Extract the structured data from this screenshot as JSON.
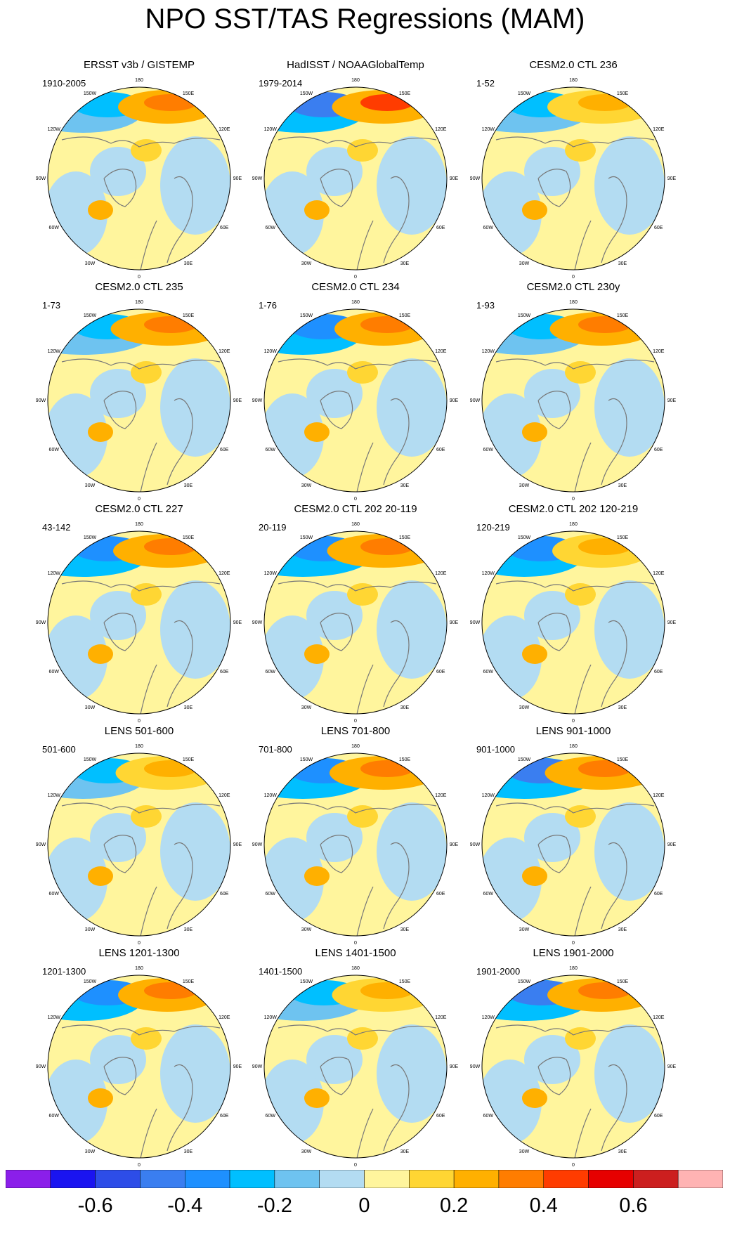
{
  "title": "NPO SST/TAS Regressions (MAM)",
  "lon_labels": [
    "180",
    "150E",
    "120E",
    "90E",
    "60E",
    "30E",
    "0",
    "30W",
    "60W",
    "90W",
    "120W",
    "150W"
  ],
  "colors": [
    "#8b1fea",
    "#1a14f0",
    "#2d4de8",
    "#3a7ef0",
    "#1e90ff",
    "#00bfff",
    "#6ec3f0",
    "#b3dcf2",
    "#fff59d",
    "#ffd633",
    "#ffb000",
    "#ff7d00",
    "#ff3c00",
    "#e60000",
    "#cc1f1f",
    "#ffb3b3"
  ],
  "colorbar": {
    "labels": [
      "-0.6",
      "-0.4",
      "-0.2",
      "0",
      "0.2",
      "0.4",
      "0.6"
    ]
  },
  "chart_data": {
    "type": "polar-stereographic map panels (filled contours)",
    "variable": "SST/TAS regression onto NPO, MAM",
    "levels": [
      -0.7,
      -0.6,
      -0.5,
      -0.4,
      -0.3,
      -0.2,
      -0.1,
      0,
      0.1,
      0.2,
      0.3,
      0.4,
      0.5,
      0.6,
      0.7
    ],
    "panels": [
      {
        "title": "ERSST v3b / GISTEMP",
        "years": "1910-2005",
        "north_pacific_max": 0.3,
        "west_pacific_min": -0.25
      },
      {
        "title": "HadISST / NOAAGlobalTemp",
        "years": "1979-2014",
        "north_pacific_max": 0.4,
        "west_pacific_min": -0.5
      },
      {
        "title": "CESM2.0 CTL 236",
        "years": "1-52",
        "north_pacific_max": 0.25,
        "west_pacific_min": -0.25
      },
      {
        "title": "CESM2.0 CTL 235",
        "years": "1-73",
        "north_pacific_max": 0.3,
        "west_pacific_min": -0.3
      },
      {
        "title": "CESM2.0 CTL 234",
        "years": "1-76",
        "north_pacific_max": 0.35,
        "west_pacific_min": -0.35
      },
      {
        "title": "CESM2.0 CTL 230y",
        "years": "1-93",
        "north_pacific_max": 0.3,
        "west_pacific_min": -0.3
      },
      {
        "title": "CESM2.0 CTL 227",
        "years": "43-142",
        "north_pacific_max": 0.3,
        "west_pacific_min": -0.35
      },
      {
        "title": "CESM2.0 CTL 202 20-119",
        "years": "20-119",
        "north_pacific_max": 0.3,
        "west_pacific_min": -0.4
      },
      {
        "title": "CESM2.0 CTL 202 120-219",
        "years": "120-219",
        "north_pacific_max": 0.2,
        "west_pacific_min": -0.4
      },
      {
        "title": "LENS 501-600",
        "years": "501-600",
        "north_pacific_max": 0.25,
        "west_pacific_min": -0.3
      },
      {
        "title": "LENS 701-800",
        "years": "701-800",
        "north_pacific_max": 0.35,
        "west_pacific_min": -0.35
      },
      {
        "title": "LENS 901-1000",
        "years": "901-1000",
        "north_pacific_max": 0.3,
        "west_pacific_min": -0.45
      },
      {
        "title": "LENS 1201-1300",
        "years": "1201-1300",
        "north_pacific_max": 0.3,
        "west_pacific_min": -0.35
      },
      {
        "title": "LENS 1401-1500",
        "years": "1401-1500",
        "north_pacific_max": 0.25,
        "west_pacific_min": -0.25
      },
      {
        "title": "LENS 1901-2000",
        "years": "1901-2000",
        "north_pacific_max": 0.3,
        "west_pacific_min": -0.45
      }
    ]
  }
}
